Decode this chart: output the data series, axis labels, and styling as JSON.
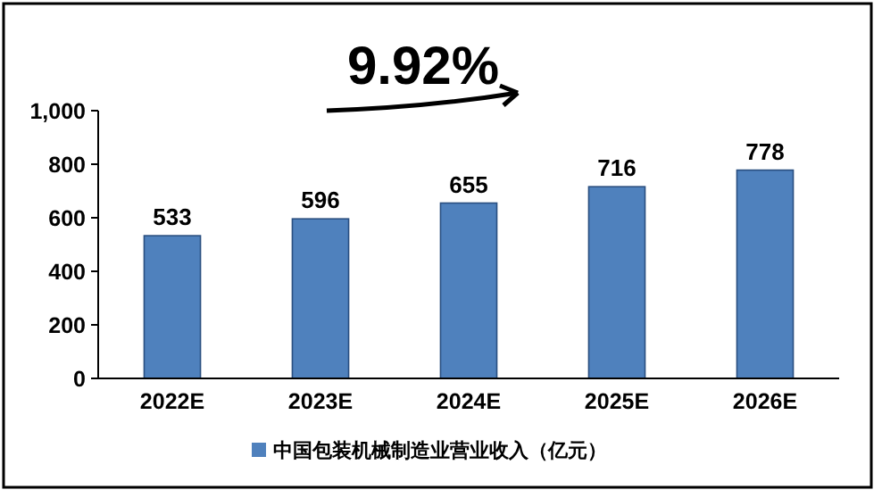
{
  "chart_data": {
    "type": "bar",
    "categories": [
      "2022E",
      "2023E",
      "2024E",
      "2025E",
      "2026E"
    ],
    "series": [
      {
        "name": "中国包装机械制造业营业收入（亿元）",
        "color": "#4f81bd",
        "values": [
          533,
          596,
          655,
          716,
          778
        ]
      }
    ],
    "ylim": [
      0,
      1000
    ],
    "yticks": [
      0,
      200,
      400,
      600,
      800,
      {
        "value": 1000,
        "label": "1,000"
      }
    ],
    "data_labels": true,
    "legend": "bottom",
    "grid": false,
    "annotations": [
      "9.92%"
    ]
  }
}
